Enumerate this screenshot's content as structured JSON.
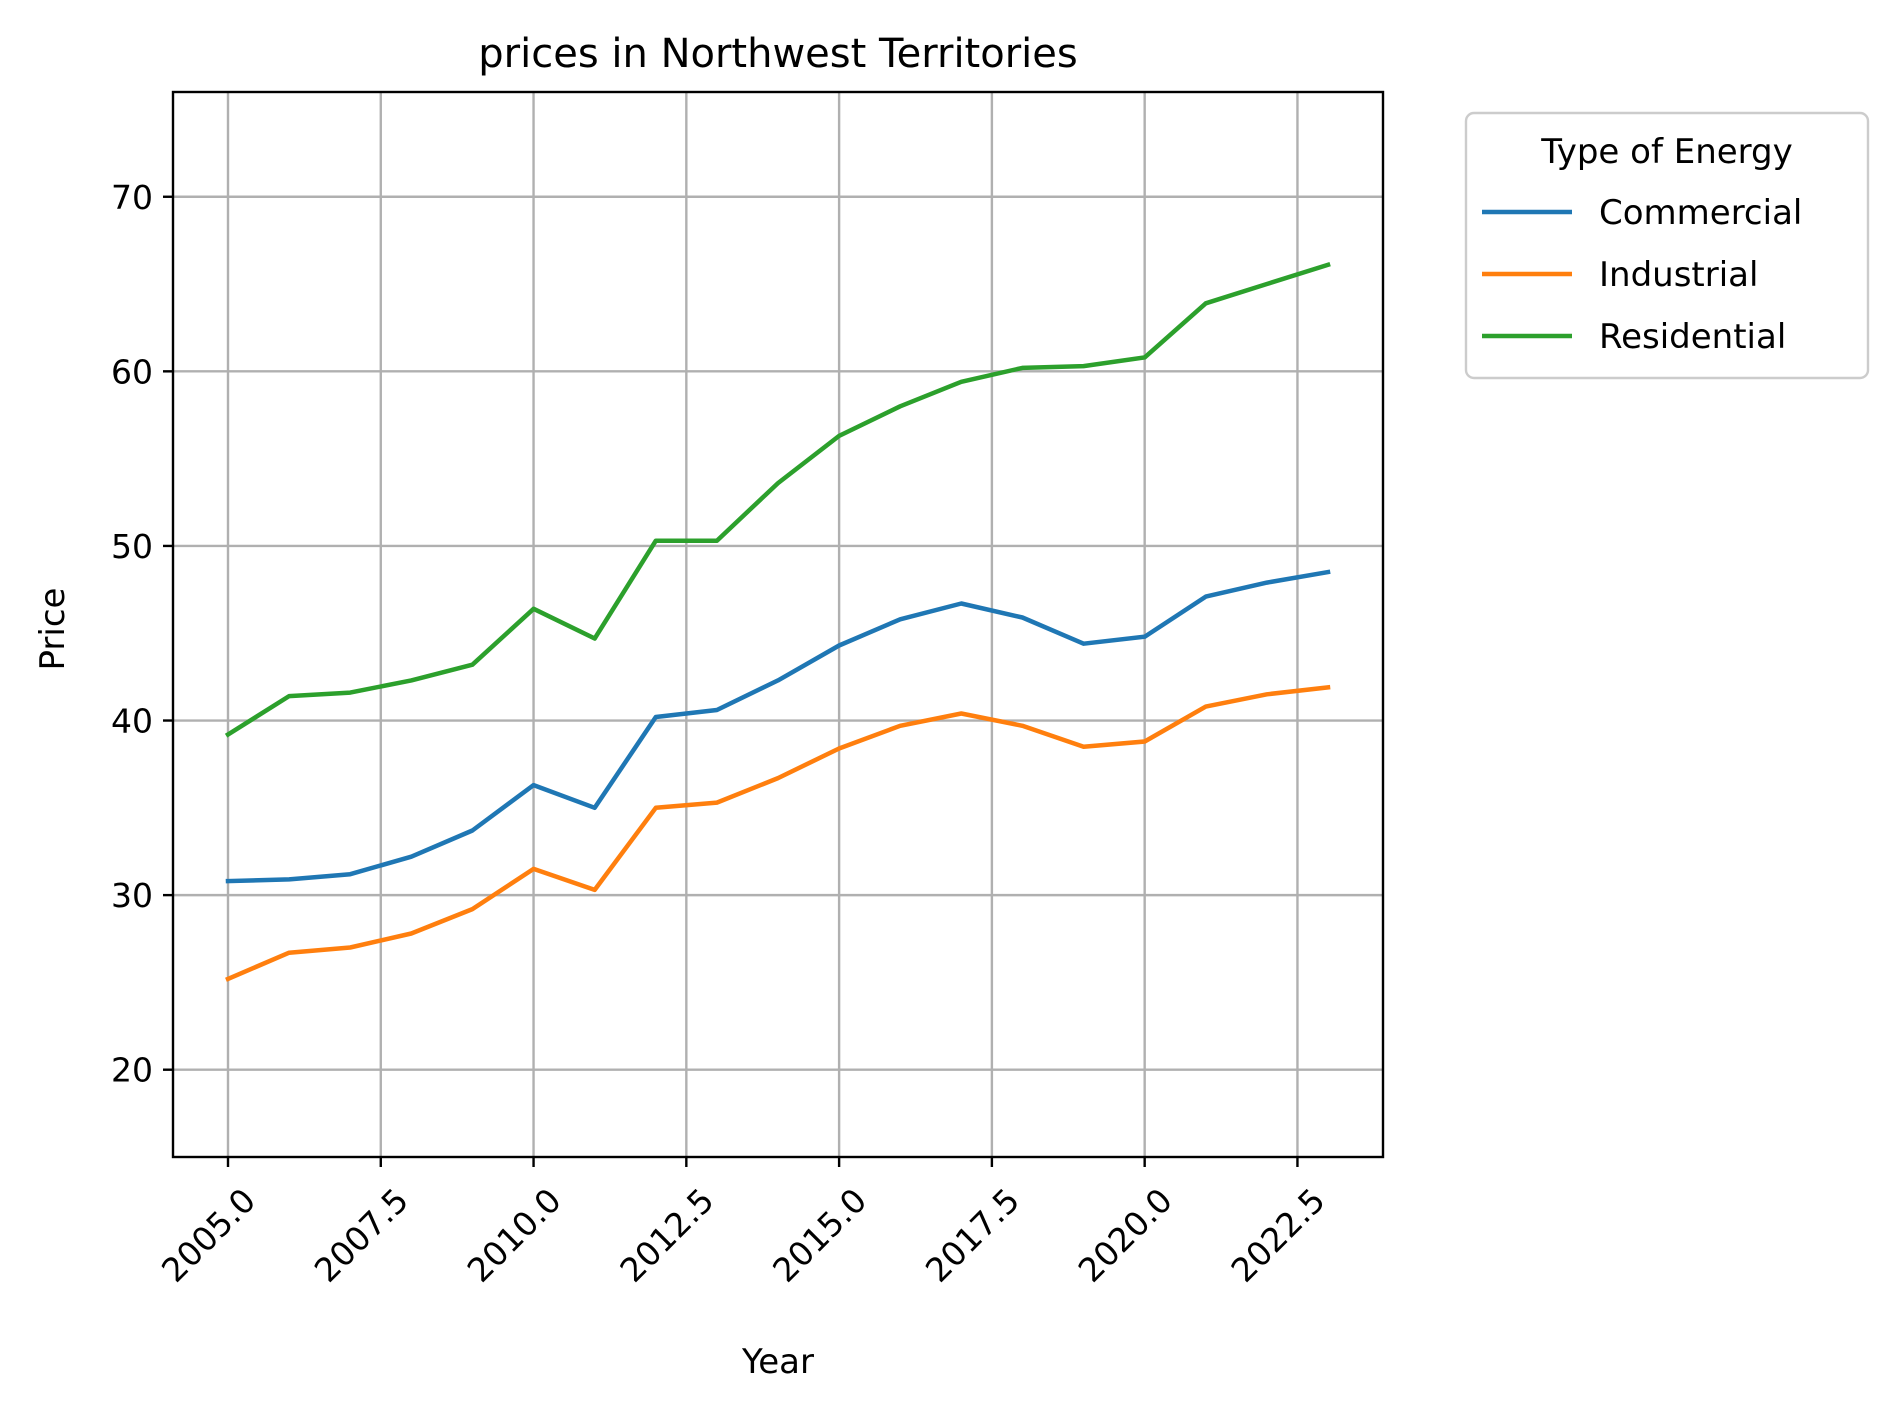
{
  "chart_data": {
    "type": "line",
    "title": "prices in Northwest Territories",
    "xlabel": "Year",
    "ylabel": "Price",
    "xlim": [
      2004.1,
      2023.9
    ],
    "ylim": [
      15,
      76
    ],
    "x_ticks": [
      2005.0,
      2007.5,
      2010.0,
      2012.5,
      2015.0,
      2017.5,
      2020.0,
      2022.5
    ],
    "x_tick_labels": [
      "2005.0",
      "2007.5",
      "2010.0",
      "2012.5",
      "2015.0",
      "2017.5",
      "2020.0",
      "2022.5"
    ],
    "y_ticks": [
      20,
      30,
      40,
      50,
      60,
      70
    ],
    "y_tick_labels": [
      "20",
      "30",
      "40",
      "50",
      "60",
      "70"
    ],
    "grid": true,
    "legend": {
      "title": "Type of Energy",
      "placement": "outside-right"
    },
    "x": [
      2005,
      2006,
      2007,
      2008,
      2009,
      2010,
      2011,
      2012,
      2013,
      2014,
      2015,
      2016,
      2017,
      2018,
      2019,
      2020,
      2021,
      2022,
      2023
    ],
    "series": [
      {
        "name": "Commercial",
        "color": "#1f77b4",
        "values": [
          30.8,
          30.9,
          31.2,
          32.2,
          33.7,
          36.3,
          35.0,
          40.2,
          40.6,
          42.3,
          44.3,
          45.8,
          46.7,
          45.9,
          44.4,
          44.8,
          47.1,
          47.9,
          48.5
        ]
      },
      {
        "name": "Industrial",
        "color": "#ff7f0e",
        "values": [
          25.2,
          26.7,
          27.0,
          27.8,
          29.2,
          31.5,
          30.3,
          35.0,
          35.3,
          36.7,
          38.4,
          39.7,
          40.4,
          39.7,
          38.5,
          38.8,
          40.8,
          41.5,
          41.9
        ]
      },
      {
        "name": "Residential",
        "color": "#2ca02c",
        "values": [
          39.2,
          41.4,
          41.6,
          42.3,
          43.2,
          46.4,
          44.7,
          50.3,
          50.3,
          53.6,
          56.3,
          58.0,
          59.4,
          60.2,
          60.3,
          60.8,
          63.9,
          65.0,
          66.1
        ]
      }
    ]
  }
}
